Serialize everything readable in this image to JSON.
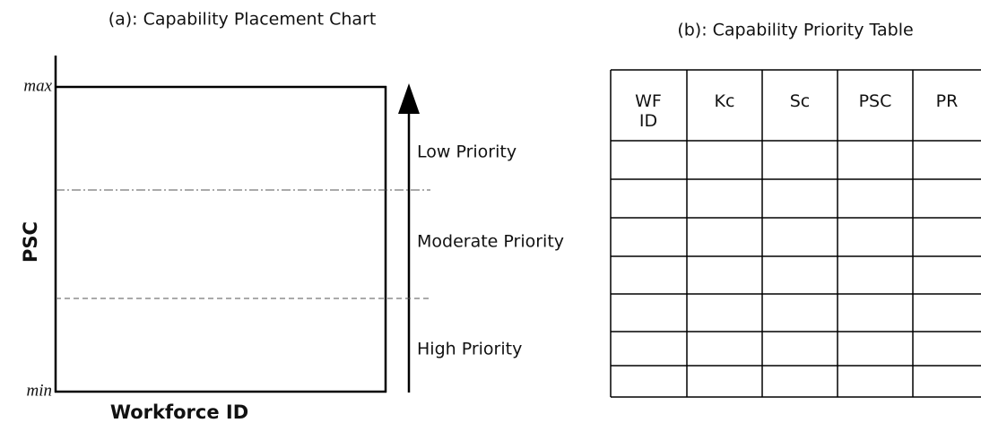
{
  "panel_a": {
    "title": "(a): Capability Placement Chart",
    "y_axis_label": "PSC",
    "x_axis_label": "Workforce ID",
    "y_max": "max",
    "y_min": "min",
    "zones": [
      "Low Priority",
      "Moderate Priority",
      "High Priority"
    ]
  },
  "panel_b": {
    "title": "(b): Capability Priority Table",
    "columns": [
      "WF ID",
      "Kc",
      "Sc",
      "PSC",
      "PR"
    ]
  }
}
